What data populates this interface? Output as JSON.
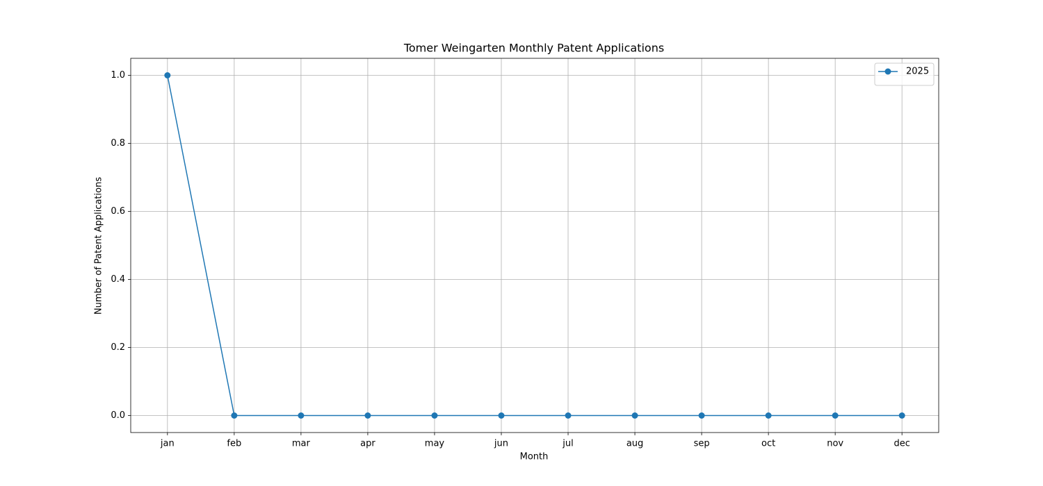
{
  "chart_data": {
    "type": "line",
    "title": "Tomer Weingarten Monthly Patent Applications",
    "x_label": "Month",
    "y_label": "Number of Patent Applications",
    "categories": [
      "jan",
      "feb",
      "mar",
      "apr",
      "may",
      "jun",
      "jul",
      "aug",
      "sep",
      "oct",
      "nov",
      "dec"
    ],
    "series": [
      {
        "name": "2025",
        "color": "#1f77b4",
        "values": [
          1,
          0,
          0,
          0,
          0,
          0,
          0,
          0,
          0,
          0,
          0,
          0
        ]
      }
    ],
    "ylim": [
      -0.05,
      1.05
    ],
    "yticks": [
      {
        "value": 0,
        "label": "0.0"
      },
      {
        "value": 0.2,
        "label": "0.2"
      },
      {
        "value": 0.4,
        "label": "0.4"
      },
      {
        "value": 0.6,
        "label": "0.6"
      },
      {
        "value": 0.8,
        "label": "0.8"
      },
      {
        "value": 1,
        "label": "1.0"
      }
    ],
    "grid": true,
    "legend": "upper right"
  }
}
